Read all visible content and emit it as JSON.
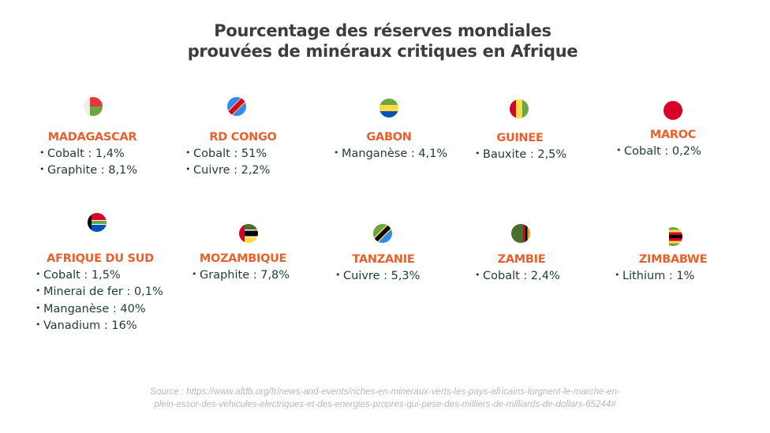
{
  "title_line1": "Pourcentage des réserves mondiales",
  "title_line2": "prouvées de minéraux critiques en Afrique",
  "countries": [
    {
      "name": "MADAGASCAR",
      "flag": "madagascar-flag-icon",
      "items": [
        "Cobalt : 1,4%",
        "Graphite : 8,1%"
      ]
    },
    {
      "name": "RD CONGO",
      "flag": "dr-congo-flag-icon",
      "items": [
        "Cobalt : 51%",
        "Cuivre : 2,2%"
      ]
    },
    {
      "name": "GABON",
      "flag": "gabon-flag-icon",
      "items": [
        "Manganèse : 4,1%"
      ]
    },
    {
      "name": "GUINEE",
      "flag": "guinea-flag-icon",
      "items": [
        "Bauxite : 2,5%"
      ]
    },
    {
      "name": "MAROC",
      "flag": "morocco-flag-icon",
      "items": [
        "Cobalt : 0,2%"
      ]
    },
    {
      "name": "AFRIQUE DU SUD",
      "flag": "south-africa-flag-icon",
      "items": [
        "Cobalt : 1,5%",
        "Minerai de fer : 0,1%",
        "Manganèse : 40%",
        "Vanadium : 16%"
      ]
    },
    {
      "name": "MOZAMBIQUE",
      "flag": "mozambique-flag-icon",
      "items": [
        "Graphite : 7,8%"
      ]
    },
    {
      "name": "TANZANIE",
      "flag": "tanzania-flag-icon",
      "items": [
        "Cuivre : 5,3%"
      ]
    },
    {
      "name": "ZAMBIE",
      "flag": "zambia-flag-icon",
      "items": [
        "Cobalt : 2,4%"
      ]
    },
    {
      "name": "ZIMBABWE",
      "flag": "zimbabwe-flag-icon",
      "items": [
        "Lithium : 1%"
      ]
    }
  ],
  "source_line1": "Source : https://www.afdb.org/fr/news-and-events/riches-en-mineraux-verts-les-pays-africains-lorgnent-le-marche-en-",
  "source_line2": "plein-essor-des-vehicules-electriques-et-des-energies-propres-qui-pese-des-milliers-de-milliards-de-dollars-65244#",
  "colors": {
    "accent": "#e8602c",
    "text": "#1f3a3d",
    "title": "#3d3d3d"
  }
}
